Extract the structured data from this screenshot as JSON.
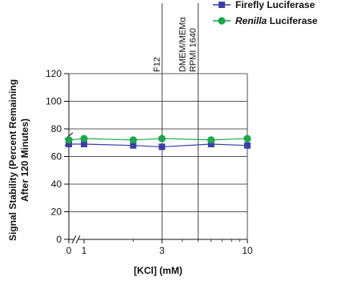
{
  "chart_data": {
    "type": "line",
    "xlabel": "[KCl] (mM)",
    "ylabel_lines": [
      "Signal Stability (Percent Remaining",
      "After 120 Minutes)"
    ],
    "x_scale": "log",
    "x_axis_break": true,
    "y_axis_break": true,
    "xlim": [
      0.75,
      10
    ],
    "ylim": [
      0,
      120
    ],
    "x_ticks": [
      {
        "value": 0,
        "label": "0"
      },
      {
        "value": 1,
        "label": "1"
      },
      {
        "value": 3,
        "label": "3"
      },
      {
        "value": 10,
        "label": "10"
      }
    ],
    "y_ticks": [
      0,
      20,
      40,
      60,
      80,
      100,
      120
    ],
    "grid": true,
    "legend_position": "top-right",
    "series": [
      {
        "name": "Firefly Luciferase",
        "name_parts": [
          {
            "text": "Firefly Luciferase",
            "italic": false
          }
        ],
        "marker": "square",
        "color": "#3a3fa8",
        "points": [
          [
            0,
            69
          ],
          [
            1,
            69
          ],
          [
            2,
            68
          ],
          [
            3,
            67
          ],
          [
            6,
            69
          ],
          [
            10,
            68
          ]
        ]
      },
      {
        "name": "Renilla Luciferase",
        "name_parts": [
          {
            "text": "Renilla",
            "italic": true
          },
          {
            "text": " Luciferase",
            "italic": false
          }
        ],
        "marker": "circle",
        "color": "#1aa64b",
        "points": [
          [
            0,
            72
          ],
          [
            1,
            73
          ],
          [
            2,
            72
          ],
          [
            3,
            73
          ],
          [
            6,
            72
          ],
          [
            10,
            73
          ]
        ]
      }
    ],
    "reference_lines": [
      {
        "x": 3,
        "labels": [
          "F12"
        ]
      },
      {
        "x": 5,
        "labels": [
          "DMEM/MEMα",
          "RPMI 1640"
        ]
      }
    ],
    "axis_color": "#111111",
    "grid_color": "#222222"
  }
}
